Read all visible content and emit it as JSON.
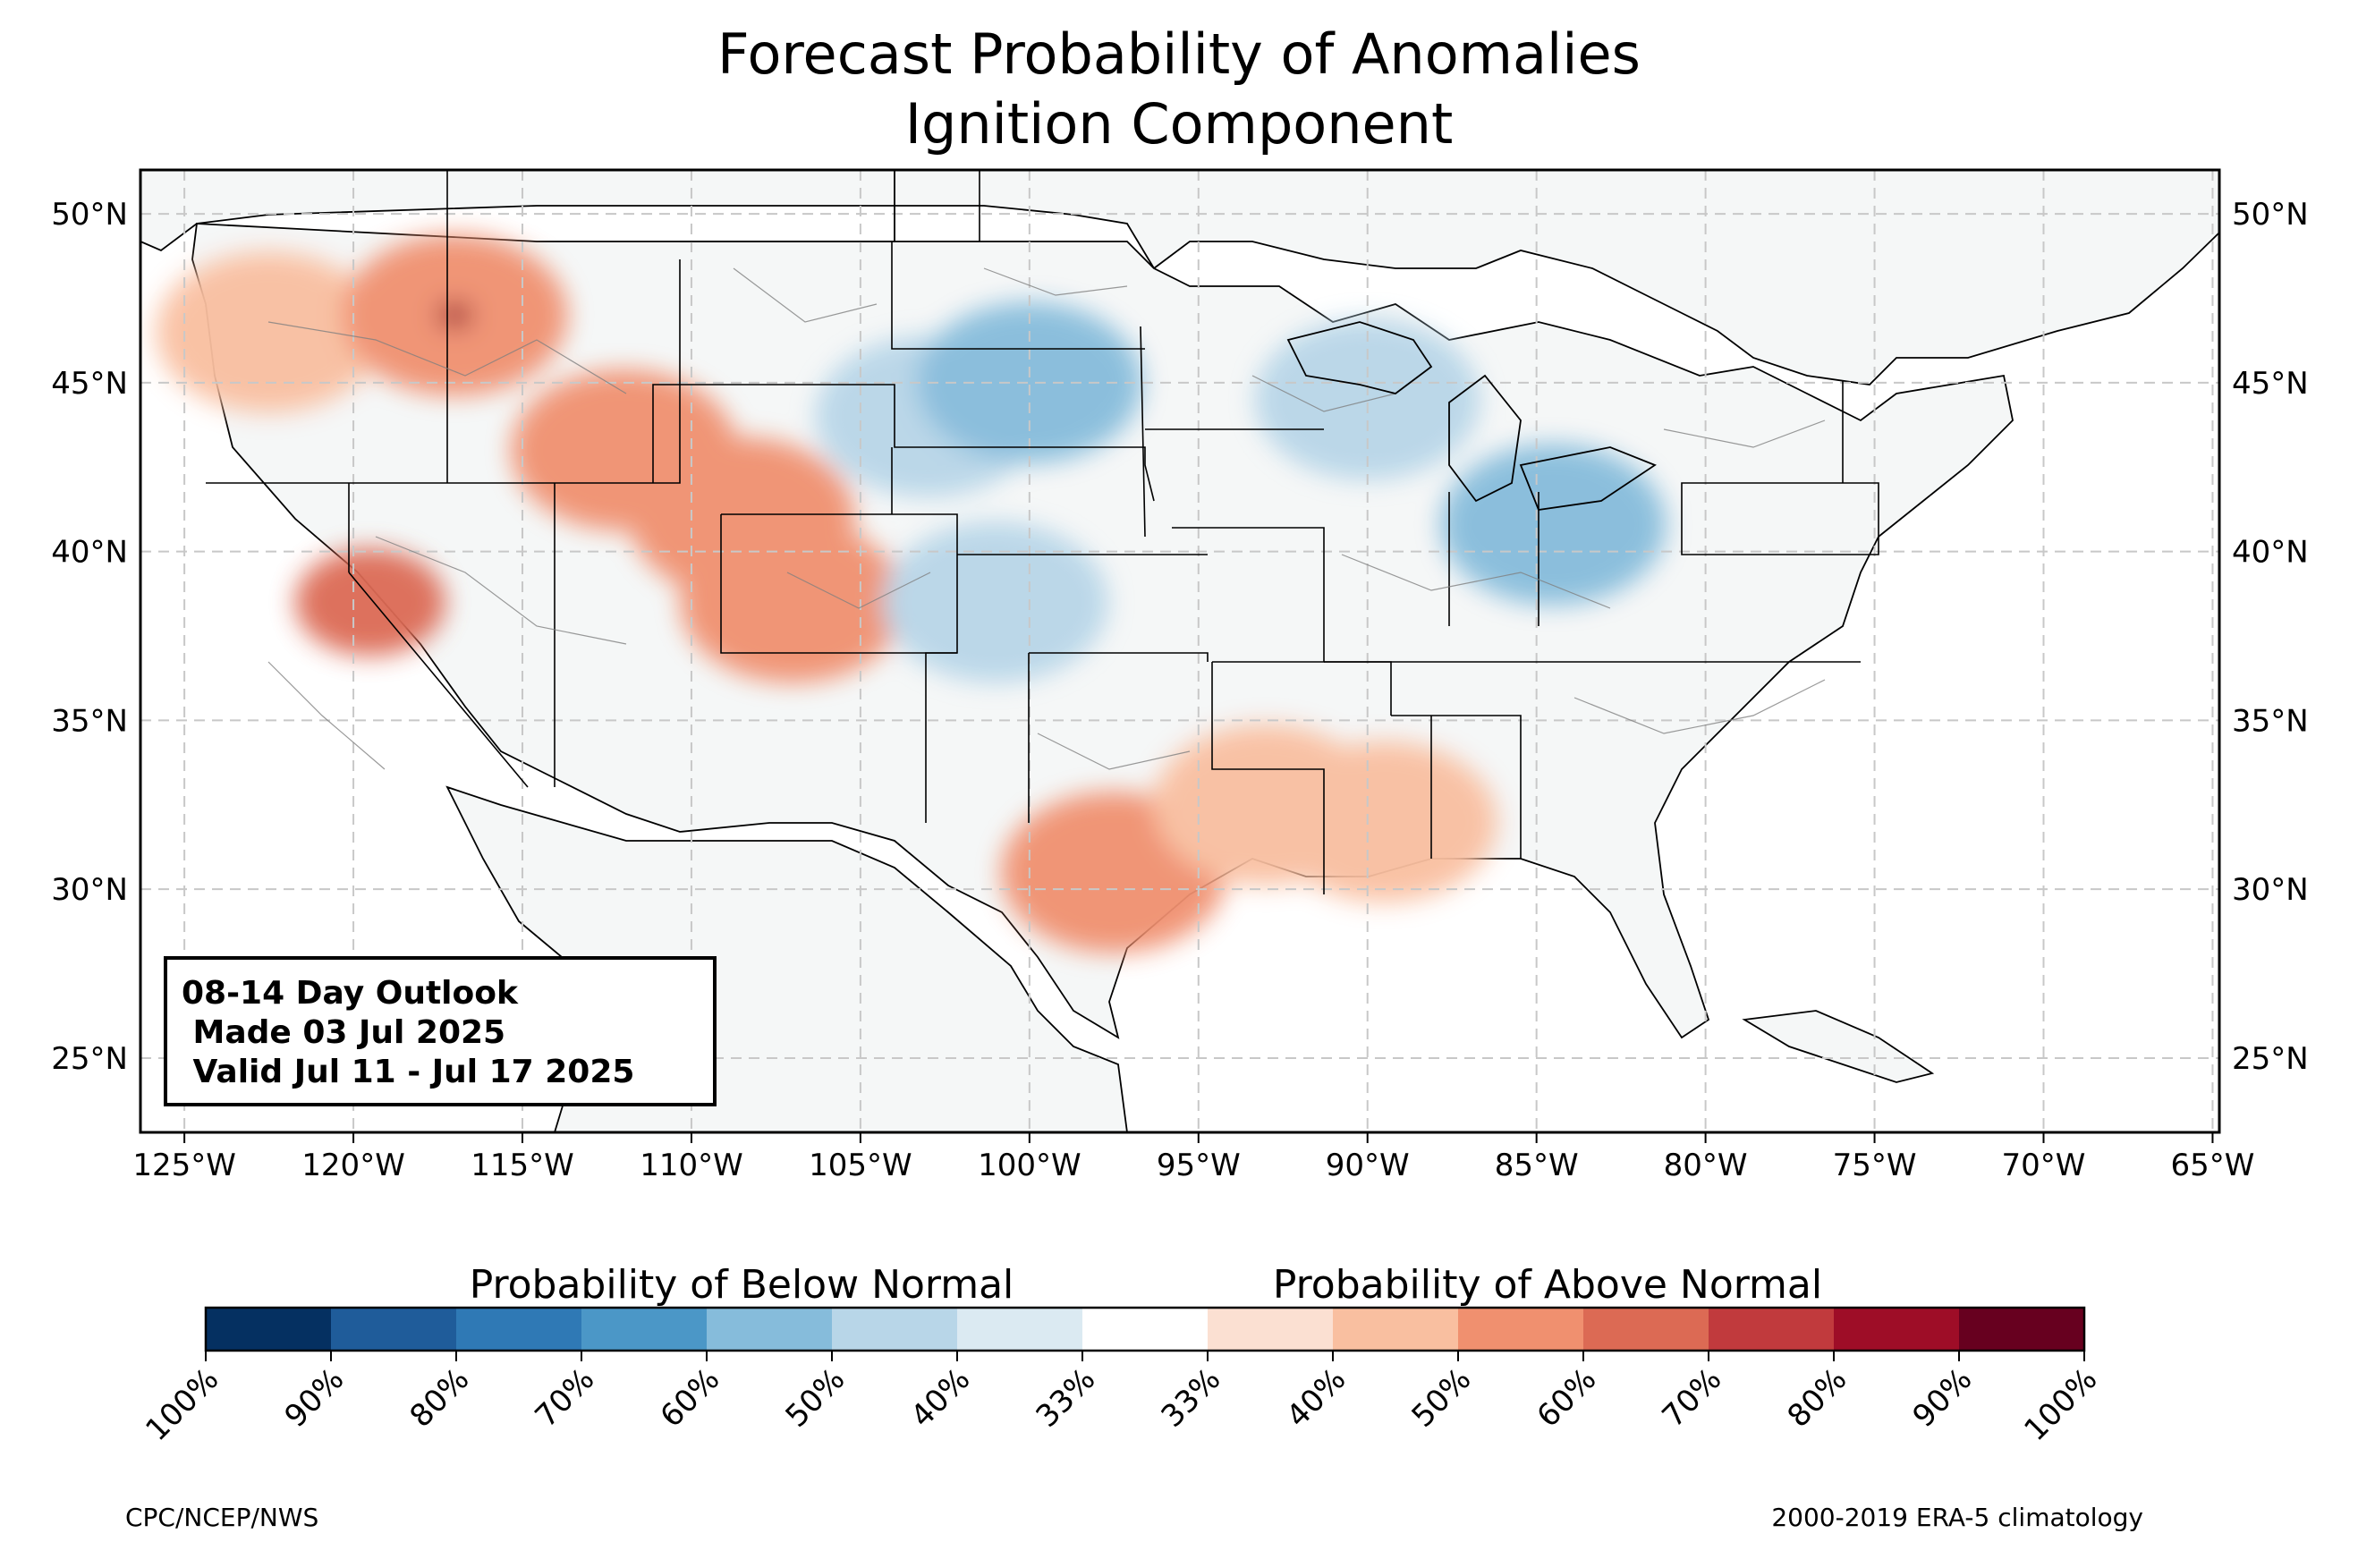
{
  "title": {
    "line1": "Forecast Probability of Anomalies",
    "line2": "Ignition Component"
  },
  "map": {
    "lon_ticks": [
      "125°W",
      "120°W",
      "115°W",
      "110°W",
      "105°W",
      "100°W",
      "95°W",
      "90°W",
      "85°W",
      "80°W",
      "75°W",
      "70°W",
      "65°W"
    ],
    "lat_ticks": [
      "50°N",
      "45°N",
      "40°N",
      "35°N",
      "30°N",
      "25°N"
    ],
    "lon_range": [
      -126.3,
      -64.8
    ],
    "lat_range": [
      22.8,
      51.3
    ],
    "colors": {
      "land": "#f5f7f7",
      "ocean": "#ffffff",
      "border": "#000000",
      "county": "#808080",
      "grid": "#c8c8c8"
    },
    "anomalies": [
      {
        "category": "above",
        "level": "50%",
        "lon": -122.5,
        "lat": 46.5
      },
      {
        "category": "above",
        "level": "60%",
        "lon": -117.0,
        "lat": 47.0
      },
      {
        "category": "above",
        "level": "90%",
        "lon": -117.0,
        "lat": 47.0
      },
      {
        "category": "above",
        "level": "60%",
        "lon": -112.0,
        "lat": 43.0
      },
      {
        "category": "above",
        "level": "60%",
        "lon": -108.5,
        "lat": 41.0
      },
      {
        "category": "above",
        "level": "70%",
        "lon": -119.5,
        "lat": 38.5
      },
      {
        "category": "above",
        "level": "60%",
        "lon": -107.0,
        "lat": 38.5
      },
      {
        "category": "above",
        "level": "60%",
        "lon": -97.5,
        "lat": 30.5
      },
      {
        "category": "above",
        "level": "50%",
        "lon": -93.0,
        "lat": 32.5
      },
      {
        "category": "above",
        "level": "50%",
        "lon": -89.5,
        "lat": 32.0
      },
      {
        "category": "below",
        "level": "50%",
        "lon": -103.0,
        "lat": 44.0
      },
      {
        "category": "below",
        "level": "60%",
        "lon": -100.0,
        "lat": 45.0
      },
      {
        "category": "below",
        "level": "50%",
        "lon": -101.0,
        "lat": 38.5
      },
      {
        "category": "below",
        "level": "50%",
        "lon": -90.0,
        "lat": 44.5
      },
      {
        "category": "below",
        "level": "60%",
        "lon": -84.5,
        "lat": 40.8
      }
    ]
  },
  "outlook": {
    "line1": "08-14 Day Outlook",
    "line2": " Made 03 Jul 2025",
    "line3": " Valid Jul 11 - Jul 17 2025"
  },
  "legend": {
    "below_label": "Probability of Below Normal",
    "above_label": "Probability of Above Normal",
    "ticks": [
      "100%",
      "90%",
      "80%",
      "70%",
      "60%",
      "50%",
      "40%",
      "33%",
      "33%",
      "40%",
      "50%",
      "60%",
      "70%",
      "80%",
      "90%",
      "100%"
    ],
    "colors": [
      "#053061",
      "#1f5c9a",
      "#2f79b5",
      "#4b97c7",
      "#86bcdb",
      "#b8d6e8",
      "#dbeaf2",
      "#ffffff",
      "#fbe0d2",
      "#f9bfa0",
      "#f0906f",
      "#dc6a54",
      "#c13a3d",
      "#9e0d27",
      "#67001f"
    ]
  },
  "footer": {
    "left": "CPC/NCEP/NWS",
    "right": "2000-2019 ERA-5 climatology"
  }
}
